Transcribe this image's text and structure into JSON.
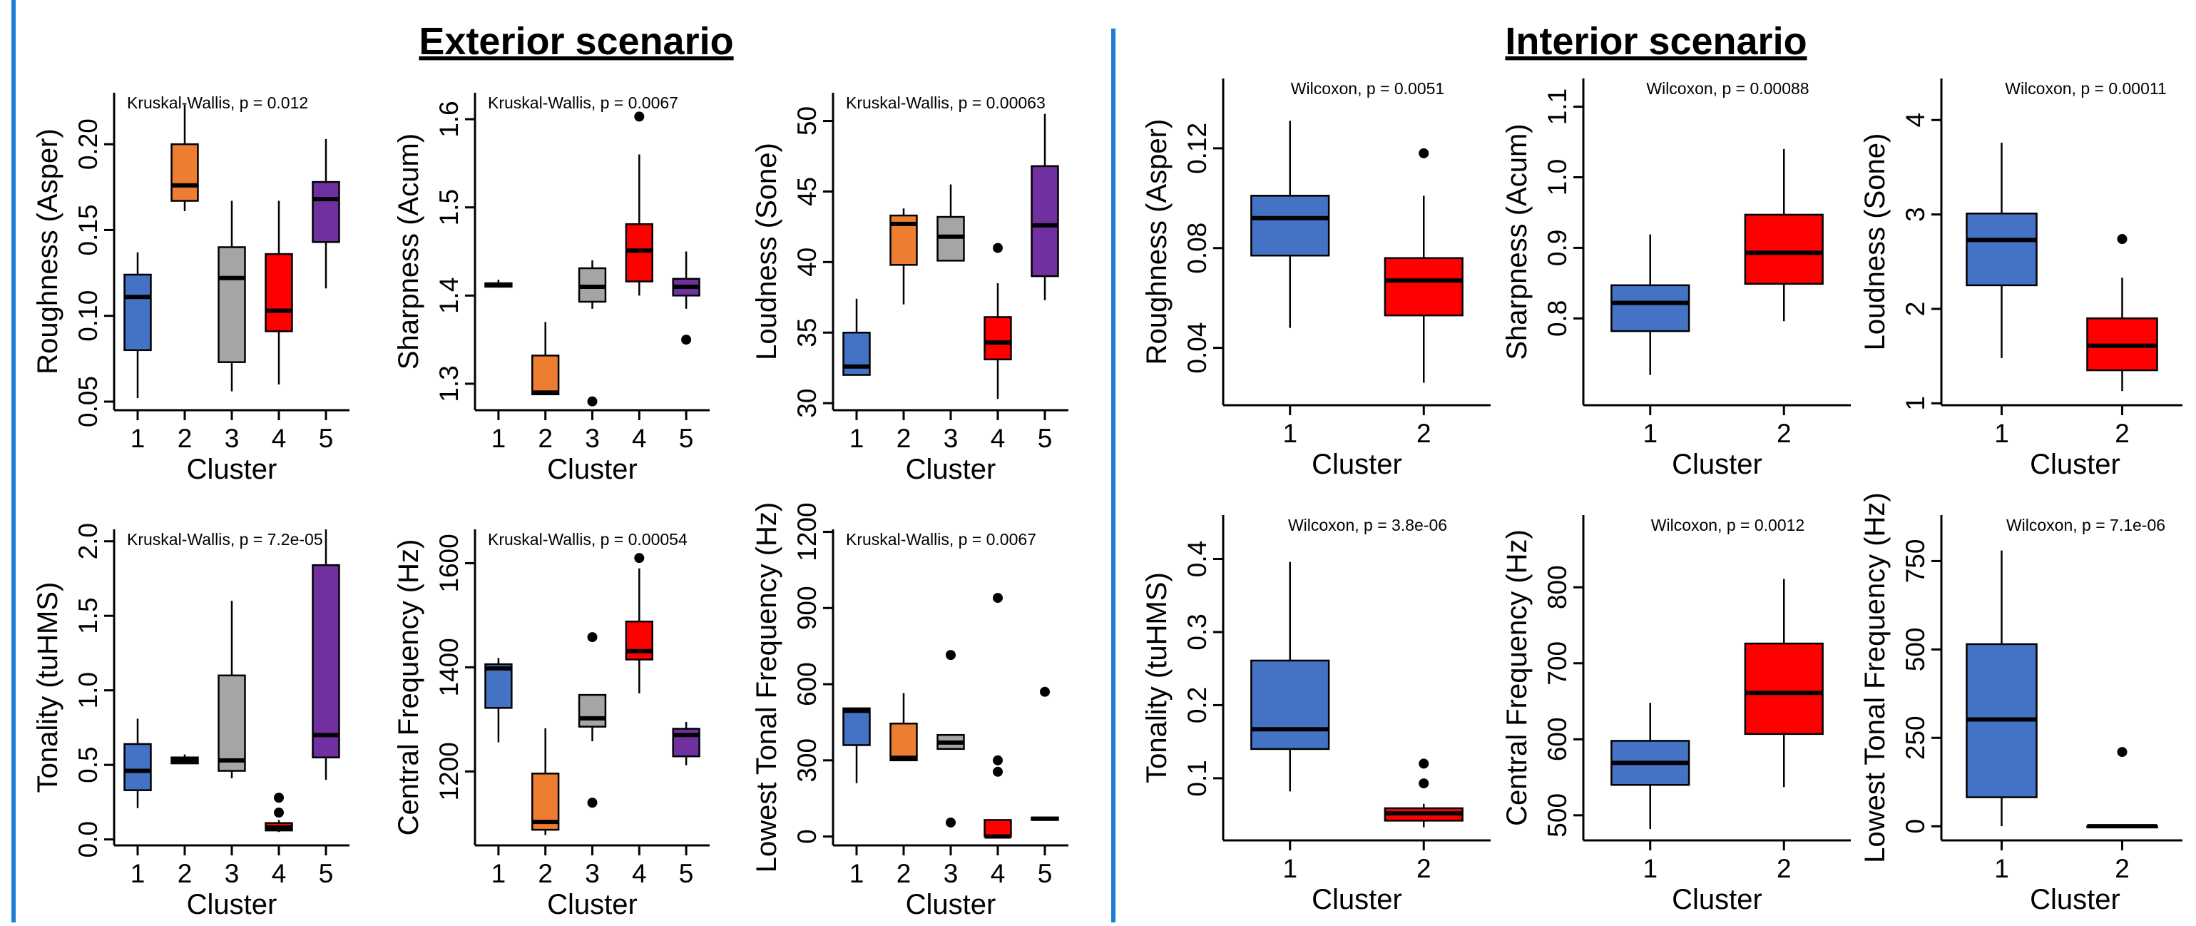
{
  "colors": {
    "divider": "#1a7fd4",
    "exterior_title": "#1a7fd4",
    "interior_title": "#000000",
    "cluster": [
      "#4472c4",
      "#ed7d31",
      "#a5a5a5",
      "#ff0000",
      "#7030a0"
    ],
    "interior_cluster": [
      "#4472c4",
      "#ff0000"
    ]
  },
  "scenarios": {
    "exterior": {
      "title": "Exterior scenario"
    },
    "interior": {
      "title": "Interior scenario"
    }
  },
  "chart_data": [
    {
      "type": "box",
      "scenario": "exterior",
      "test": "Kruskal-Wallis, p = 0.012",
      "ylabel": "Roughness (Asper)",
      "xlabel": "Cluster",
      "categories": [
        "1",
        "2",
        "3",
        "4",
        "5"
      ],
      "ylim": [
        0.045,
        0.23
      ],
      "yticks": [
        0.05,
        0.1,
        0.15,
        0.2
      ],
      "ytick_labels": [
        "0.05",
        "0.10",
        "0.15",
        "0.20"
      ],
      "boxes": [
        {
          "min": 0.052,
          "q1": 0.08,
          "median": 0.111,
          "q3": 0.124,
          "max": 0.137,
          "outliers": []
        },
        {
          "min": 0.161,
          "q1": 0.167,
          "median": 0.176,
          "q3": 0.2,
          "max": 0.223,
          "outliers": []
        },
        {
          "min": 0.056,
          "q1": 0.073,
          "median": 0.122,
          "q3": 0.14,
          "max": 0.167,
          "outliers": []
        },
        {
          "min": 0.06,
          "q1": 0.091,
          "median": 0.103,
          "q3": 0.136,
          "max": 0.167,
          "outliers": []
        },
        {
          "min": 0.116,
          "q1": 0.143,
          "median": 0.168,
          "q3": 0.178,
          "max": 0.203,
          "outliers": []
        }
      ]
    },
    {
      "type": "box",
      "scenario": "exterior",
      "test": "Kruskal-Wallis, p = 0.0067",
      "ylabel": "Sharpness (Acum)",
      "xlabel": "Cluster",
      "categories": [
        "1",
        "2",
        "3",
        "4",
        "5"
      ],
      "ylim": [
        1.27,
        1.63
      ],
      "yticks": [
        1.3,
        1.4,
        1.5,
        1.6
      ],
      "ytick_labels": [
        "1.3",
        "1.4",
        "1.5",
        "1.6"
      ],
      "boxes": [
        {
          "min": 1.409,
          "q1": 1.41,
          "median": 1.412,
          "q3": 1.414,
          "max": 1.418,
          "outliers": []
        },
        {
          "min": 1.288,
          "q1": 1.288,
          "median": 1.29,
          "q3": 1.332,
          "max": 1.37,
          "outliers": []
        },
        {
          "min": 1.385,
          "q1": 1.393,
          "median": 1.41,
          "q3": 1.431,
          "max": 1.44,
          "outliers": [
            1.28
          ]
        },
        {
          "min": 1.4,
          "q1": 1.416,
          "median": 1.451,
          "q3": 1.481,
          "max": 1.56,
          "outliers": [
            1.603
          ]
        },
        {
          "min": 1.385,
          "q1": 1.4,
          "median": 1.41,
          "q3": 1.419,
          "max": 1.45,
          "outliers": [
            1.35
          ]
        }
      ]
    },
    {
      "type": "box",
      "scenario": "exterior",
      "test": "Kruskal-Wallis, p = 0.00063",
      "ylabel": "Loudness (Sone)",
      "xlabel": "Cluster",
      "categories": [
        "1",
        "2",
        "3",
        "4",
        "5"
      ],
      "ylim": [
        29.5,
        52
      ],
      "yticks": [
        30,
        35,
        40,
        45,
        50
      ],
      "ytick_labels": [
        "30",
        "35",
        "40",
        "45",
        "50"
      ],
      "boxes": [
        {
          "min": 32.0,
          "q1": 32.0,
          "median": 32.6,
          "q3": 35.0,
          "max": 37.4,
          "outliers": []
        },
        {
          "min": 37.0,
          "q1": 39.8,
          "median": 42.7,
          "q3": 43.3,
          "max": 43.8,
          "outliers": []
        },
        {
          "min": 40.1,
          "q1": 40.1,
          "median": 41.8,
          "q3": 43.2,
          "max": 45.5,
          "outliers": []
        },
        {
          "min": 30.3,
          "q1": 33.1,
          "median": 34.3,
          "q3": 36.1,
          "max": 38.5,
          "outliers": [
            41.0
          ]
        },
        {
          "min": 37.3,
          "q1": 39.0,
          "median": 42.6,
          "q3": 46.8,
          "max": 50.5,
          "outliers": []
        }
      ]
    },
    {
      "type": "box",
      "scenario": "exterior",
      "test": "Kruskal-Wallis, p = 7.2e-05",
      "ylabel": "Tonality (tuHMS)",
      "xlabel": "Cluster",
      "categories": [
        "1",
        "2",
        "3",
        "4",
        "5"
      ],
      "ylim": [
        -0.04,
        2.08
      ],
      "yticks": [
        0.0,
        0.5,
        1.0,
        1.5,
        2.0
      ],
      "ytick_labels": [
        "0.0",
        "0.5",
        "1.0",
        "1.5",
        "2.0"
      ],
      "boxes": [
        {
          "min": 0.21,
          "q1": 0.33,
          "median": 0.46,
          "q3": 0.64,
          "max": 0.81,
          "outliers": []
        },
        {
          "min": 0.51,
          "q1": 0.51,
          "median": 0.53,
          "q3": 0.55,
          "max": 0.57,
          "outliers": []
        },
        {
          "min": 0.41,
          "q1": 0.46,
          "median": 0.53,
          "q3": 1.1,
          "max": 1.6,
          "outliers": []
        },
        {
          "min": 0.05,
          "q1": 0.06,
          "median": 0.08,
          "q3": 0.11,
          "max": 0.13,
          "outliers": [
            0.18,
            0.28
          ]
        },
        {
          "min": 0.4,
          "q1": 0.55,
          "median": 0.7,
          "q3": 1.84,
          "max": 2.08,
          "outliers": []
        }
      ]
    },
    {
      "type": "box",
      "scenario": "exterior",
      "test": "Kruskal-Wallis, p = 0.00054",
      "ylabel": "Central Frequency (Hz)",
      "xlabel": "Cluster",
      "categories": [
        "1",
        "2",
        "3",
        "4",
        "5"
      ],
      "ylim": [
        1058,
        1665
      ],
      "yticks": [
        1200,
        1400,
        1600
      ],
      "ytick_labels": [
        "1200",
        "1400",
        "1600"
      ],
      "boxes": [
        {
          "min": 1256,
          "q1": 1322,
          "median": 1398,
          "q3": 1406,
          "max": 1418,
          "outliers": []
        },
        {
          "min": 1078,
          "q1": 1088,
          "median": 1103,
          "q3": 1196,
          "max": 1283,
          "outliers": []
        },
        {
          "min": 1258,
          "q1": 1286,
          "median": 1302,
          "q3": 1347,
          "max": 1347,
          "outliers": [
            1140,
            1458
          ]
        },
        {
          "min": 1350,
          "q1": 1415,
          "median": 1431,
          "q3": 1488,
          "max": 1590,
          "outliers": [
            1610
          ]
        },
        {
          "min": 1212,
          "q1": 1229,
          "median": 1270,
          "q3": 1282,
          "max": 1295,
          "outliers": []
        }
      ]
    },
    {
      "type": "box",
      "scenario": "exterior",
      "test": "Kruskal-Wallis, p = 0.0067",
      "ylabel": "Lowest Tonal Frequency (Hz)",
      "xlabel": "Cluster",
      "categories": [
        "1",
        "2",
        "3",
        "4",
        "5"
      ],
      "ylim": [
        -35,
        1210
      ],
      "yticks": [
        0,
        300,
        600,
        900,
        1200
      ],
      "ytick_labels": [
        "0",
        "300",
        "600",
        "900",
        "1200"
      ],
      "boxes": [
        {
          "min": 210,
          "q1": 360,
          "median": 495,
          "q3": 505,
          "max": 505,
          "outliers": []
        },
        {
          "min": 300,
          "q1": 300,
          "median": 310,
          "q3": 445,
          "max": 565,
          "outliers": []
        },
        {
          "min": 345,
          "q1": 345,
          "median": 370,
          "q3": 400,
          "max": 400,
          "outliers": [
            55,
            715
          ]
        },
        {
          "min": 0,
          "q1": 0,
          "median": 0,
          "q3": 65,
          "max": 65,
          "outliers": [
            255,
            300,
            940
          ]
        },
        {
          "min": 65,
          "q1": 65,
          "median": 70,
          "q3": 75,
          "max": 75,
          "outliers": [
            570
          ]
        }
      ]
    },
    {
      "type": "box",
      "scenario": "interior",
      "test": "Wilcoxon, p = 0.0051",
      "ylabel": "Roughness (Asper)",
      "xlabel": "Cluster",
      "categories": [
        "1",
        "2"
      ],
      "ylim": [
        0.017,
        0.148
      ],
      "yticks": [
        0.04,
        0.08,
        0.12
      ],
      "ytick_labels": [
        "0.04",
        "0.08",
        "0.12"
      ],
      "boxes": [
        {
          "min": 0.048,
          "q1": 0.077,
          "median": 0.092,
          "q3": 0.101,
          "max": 0.131,
          "outliers": []
        },
        {
          "min": 0.026,
          "q1": 0.053,
          "median": 0.067,
          "q3": 0.076,
          "max": 0.101,
          "outliers": [
            0.118
          ]
        }
      ]
    },
    {
      "type": "box",
      "scenario": "interior",
      "test": "Wilcoxon, p = 0.00088",
      "ylabel": "Sharpness (Acum)",
      "xlabel": "Cluster",
      "categories": [
        "1",
        "2"
      ],
      "ylim": [
        0.677,
        1.14
      ],
      "yticks": [
        0.8,
        0.9,
        1.0,
        1.1
      ],
      "ytick_labels": [
        "0.8",
        "0.9",
        "1.0",
        "1.1"
      ],
      "boxes": [
        {
          "min": 0.72,
          "q1": 0.782,
          "median": 0.822,
          "q3": 0.847,
          "max": 0.919,
          "outliers": []
        },
        {
          "min": 0.796,
          "q1": 0.849,
          "median": 0.893,
          "q3": 0.947,
          "max": 1.04,
          "outliers": []
        }
      ]
    },
    {
      "type": "box",
      "scenario": "interior",
      "test": "Wilcoxon, p = 0.00011",
      "ylabel": "Loudness (Sone)",
      "xlabel": "Cluster",
      "categories": [
        "1",
        "2"
      ],
      "ylim": [
        0.98,
        4.44
      ],
      "yticks": [
        1,
        2,
        3,
        4
      ],
      "ytick_labels": [
        "1",
        "2",
        "3",
        "4"
      ],
      "boxes": [
        {
          "min": 1.48,
          "q1": 2.25,
          "median": 2.73,
          "q3": 3.01,
          "max": 3.76,
          "outliers": []
        },
        {
          "min": 1.13,
          "q1": 1.35,
          "median": 1.61,
          "q3": 1.9,
          "max": 2.33,
          "outliers": [
            2.74
          ]
        }
      ]
    },
    {
      "type": "box",
      "scenario": "interior",
      "test": "Wilcoxon, p = 3.8e-06",
      "ylabel": "Tonality (tuHMS)",
      "xlabel": "Cluster",
      "categories": [
        "1",
        "2"
      ],
      "ylim": [
        0.015,
        0.46
      ],
      "yticks": [
        0.1,
        0.2,
        0.3,
        0.4
      ],
      "ytick_labels": [
        "0.1",
        "0.2",
        "0.3",
        "0.4"
      ],
      "boxes": [
        {
          "min": 0.082,
          "q1": 0.14,
          "median": 0.167,
          "q3": 0.261,
          "max": 0.396,
          "outliers": []
        },
        {
          "min": 0.033,
          "q1": 0.042,
          "median": 0.052,
          "q3": 0.059,
          "max": 0.065,
          "outliers": [
            0.093,
            0.12
          ]
        }
      ]
    },
    {
      "type": "box",
      "scenario": "interior",
      "test": "Wilcoxon, p = 0.0012",
      "ylabel": "Central Frequency (Hz)",
      "xlabel": "Cluster",
      "categories": [
        "1",
        "2"
      ],
      "ylim": [
        467,
        895
      ],
      "yticks": [
        500,
        600,
        700,
        800
      ],
      "ytick_labels": [
        "500",
        "600",
        "700",
        "800"
      ],
      "boxes": [
        {
          "min": 482,
          "q1": 540,
          "median": 569,
          "q3": 598,
          "max": 648,
          "outliers": []
        },
        {
          "min": 537,
          "q1": 607,
          "median": 661,
          "q3": 726,
          "max": 811,
          "outliers": []
        }
      ]
    },
    {
      "type": "box",
      "scenario": "interior",
      "test": "Wilcoxon, p = 7.1e-06",
      "ylabel": "Lowest Tonal Frequency (Hz)",
      "xlabel": "Cluster",
      "categories": [
        "1",
        "2"
      ],
      "ylim": [
        -40,
        880
      ],
      "yticks": [
        0,
        250,
        500,
        750
      ],
      "ytick_labels": [
        "0",
        "250",
        "500",
        "750"
      ],
      "boxes": [
        {
          "min": 0,
          "q1": 82,
          "median": 302,
          "q3": 515,
          "max": 780,
          "outliers": []
        },
        {
          "min": 0,
          "q1": 0,
          "median": 0,
          "q3": 0,
          "max": 0,
          "outliers": [
            210
          ]
        }
      ]
    }
  ]
}
